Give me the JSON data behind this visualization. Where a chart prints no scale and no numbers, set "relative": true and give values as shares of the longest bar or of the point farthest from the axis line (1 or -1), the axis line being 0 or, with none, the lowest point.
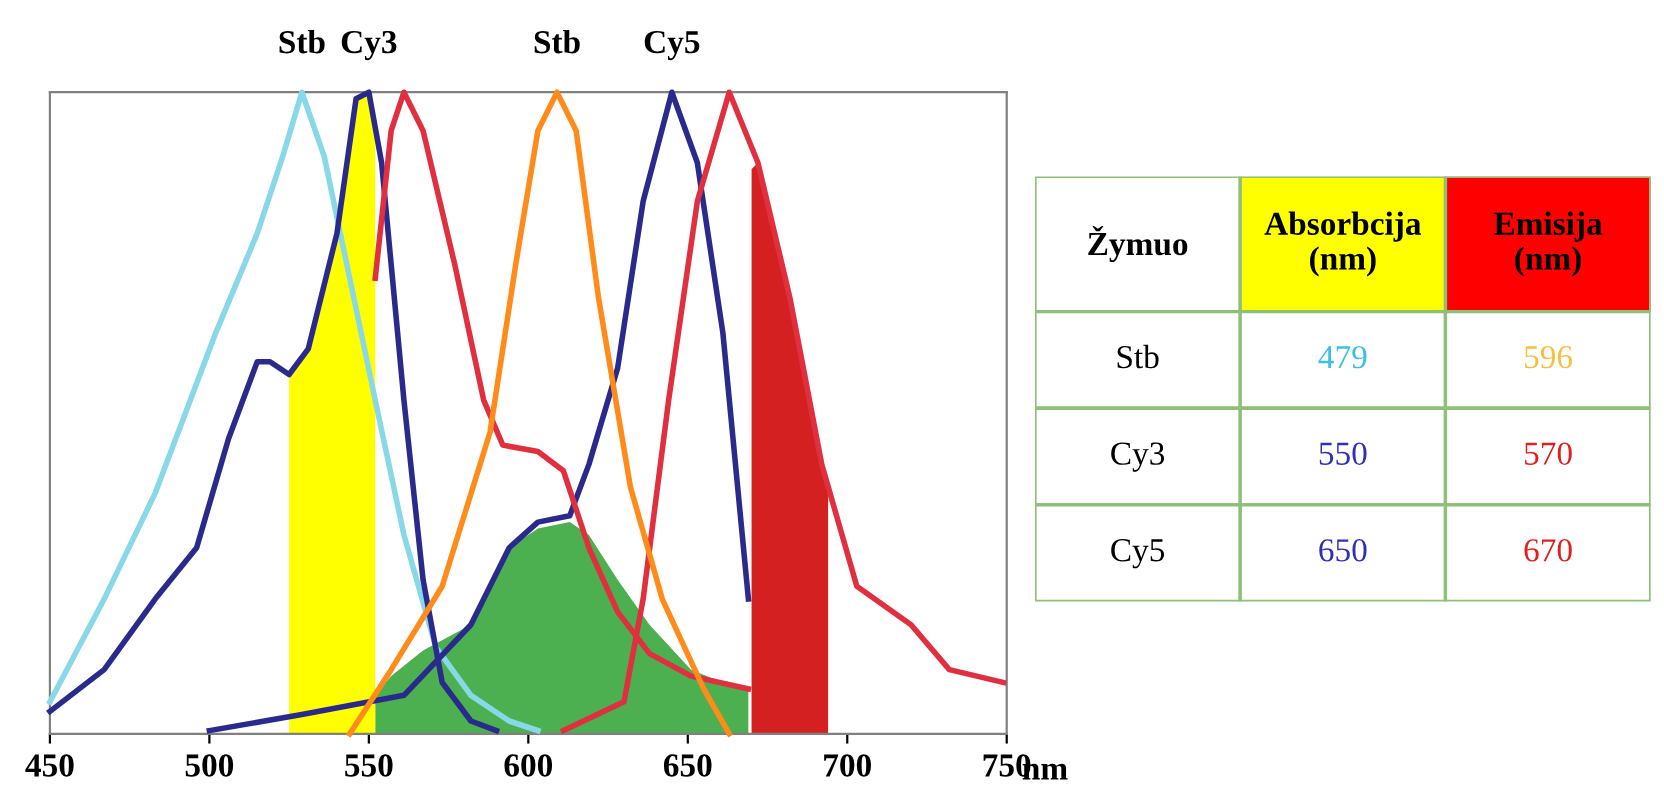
{
  "chart_data": [
    {
      "type": "line",
      "relative": true,
      "xlabel": "nm",
      "xlim": [
        450,
        750
      ],
      "xticks": [
        450,
        500,
        550,
        600,
        650,
        700,
        750
      ],
      "grid": false,
      "legend": false,
      "marker": "none",
      "line_style": "solid",
      "annotations": [
        {
          "text": "Stb",
          "x": 529,
          "y": 1.0
        },
        {
          "text": "Cy3",
          "x": 550,
          "y": 1.0
        },
        {
          "text": "Stb",
          "x": 609,
          "y": 1.0
        },
        {
          "text": "Cy5",
          "x": 645,
          "y": 1.0
        }
      ],
      "series": [
        {
          "type": "area",
          "color": "#4caf50",
          "x": [
            552,
            557,
            567,
            582,
            594,
            603,
            613,
            619,
            628,
            638,
            651,
            661,
            669
          ],
          "values": [
            0.06,
            0.09,
            0.13,
            0.17,
            0.29,
            0.32,
            0.33,
            0.31,
            0.24,
            0.17,
            0.1,
            0.08,
            0.07
          ]
        },
        {
          "type": "area",
          "color": "#ffff00",
          "x": [
            525,
            531,
            540,
            546,
            550,
            552
          ],
          "values": [
            0.56,
            0.6,
            0.78,
            0.99,
            1.0,
            0.95
          ]
        },
        {
          "type": "area",
          "color": "#d42020",
          "x": [
            670,
            672,
            682,
            692,
            694
          ],
          "values": [
            0.88,
            0.89,
            0.68,
            0.42,
            0.38
          ]
        },
        {
          "type": "line",
          "color": "#88d8e8",
          "x": [
            450,
            467,
            483,
            502,
            515,
            523,
            529,
            536,
            544,
            552,
            561,
            571,
            582,
            594,
            603
          ],
          "values": [
            0.05,
            0.21,
            0.375,
            0.625,
            0.78,
            0.9,
            1.0,
            0.9,
            0.71,
            0.52,
            0.31,
            0.135,
            0.06,
            0.02,
            0.005
          ]
        },
        {
          "type": "line",
          "color": "#2a2a8c",
          "x": [
            450,
            467,
            483,
            496,
            506,
            515,
            519,
            525,
            531,
            540,
            546,
            550,
            554,
            561,
            567,
            573,
            582,
            590
          ],
          "values": [
            0.035,
            0.1,
            0.21,
            0.29,
            0.46,
            0.58,
            0.58,
            0.56,
            0.6,
            0.78,
            0.99,
            1.0,
            0.89,
            0.52,
            0.24,
            0.08,
            0.02,
            0.005
          ]
        },
        {
          "type": "line",
          "color": "#2a2a8c",
          "x": [
            500,
            529,
            561,
            582,
            594,
            603,
            613,
            619,
            628,
            636,
            645,
            653,
            661,
            669
          ],
          "values": [
            0.005,
            0.03,
            0.06,
            0.17,
            0.29,
            0.33,
            0.34,
            0.42,
            0.57,
            0.83,
            1.0,
            0.89,
            0.625,
            0.21
          ]
        },
        {
          "type": "line",
          "color": "#e03040",
          "x": [
            552,
            557,
            561,
            567,
            577,
            586,
            592,
            603,
            611,
            619,
            628,
            638,
            651,
            669
          ],
          "values": [
            0.71,
            0.94,
            1.0,
            0.94,
            0.73,
            0.52,
            0.45,
            0.44,
            0.41,
            0.29,
            0.19,
            0.125,
            0.09,
            0.07
          ]
        },
        {
          "type": "line",
          "color": "#e03040",
          "x": [
            611,
            630,
            636,
            644,
            653,
            663,
            672,
            682,
            692,
            703,
            720,
            732,
            749
          ],
          "values": [
            0.005,
            0.05,
            0.21,
            0.52,
            0.83,
            1.0,
            0.89,
            0.68,
            0.42,
            0.23,
            0.17,
            0.1,
            0.08
          ]
        },
        {
          "type": "line",
          "color": "#ff8c1a",
          "x": [
            544,
            557,
            573,
            588,
            596,
            603,
            609,
            615,
            622,
            632,
            642,
            655,
            663
          ],
          "values": [
            0.0,
            0.1,
            0.23,
            0.47,
            0.73,
            0.94,
            1.0,
            0.94,
            0.68,
            0.385,
            0.21,
            0.07,
            0.0
          ]
        }
      ]
    },
    {
      "type": "other",
      "categories": [
        "Žymuo",
        "Absorbcija\n(nm)",
        "Emisija\n(nm)"
      ],
      "colors": [
        "#ffffff",
        "#ffff00",
        "#ff0000"
      ],
      "y_categories": [
        "Stb",
        "Cy3",
        "Cy5"
      ],
      "cell_labels": [
        [
          "479",
          "596"
        ],
        [
          "550",
          "570"
        ],
        [
          "650",
          "670"
        ]
      ]
    }
  ]
}
